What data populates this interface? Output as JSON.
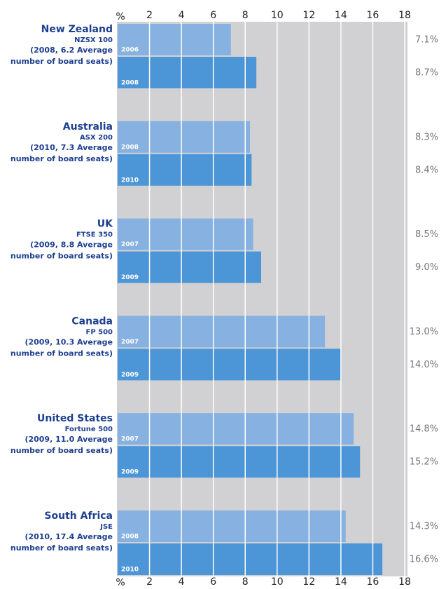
{
  "chart_data": {
    "type": "bar",
    "orientation": "horizontal",
    "x_unit": "%",
    "xlim": [
      0,
      18
    ],
    "xticks": [
      2,
      4,
      6,
      8,
      10,
      12,
      14,
      16,
      18
    ],
    "grid": true,
    "colors": [
      "#86b1e1",
      "#4c96d7"
    ],
    "groups": [
      {
        "name": "New Zealand",
        "index": "NZSX 100",
        "note": [
          "(2008, 6.2 Average",
          "number of board seats)"
        ],
        "years": [
          "2006",
          "2008"
        ],
        "values": [
          7.1,
          8.7
        ],
        "value_labels": [
          "7.1%",
          "8.7%"
        ]
      },
      {
        "name": "Australia",
        "index": "ASX 200",
        "note": [
          "(2010, 7.3 Average",
          "number of board seats)"
        ],
        "years": [
          "2008",
          "2010"
        ],
        "values": [
          8.3,
          8.4
        ],
        "value_labels": [
          "8.3%",
          "8.4%"
        ]
      },
      {
        "name": "UK",
        "index": "FTSE 350",
        "note": [
          "(2009, 8.8 Average",
          "number of board seats)"
        ],
        "years": [
          "2007",
          "2009"
        ],
        "values": [
          8.5,
          9.0
        ],
        "value_labels": [
          "8.5%",
          "9.0%"
        ]
      },
      {
        "name": "Canada",
        "index": "FP 500",
        "note": [
          "(2009, 10.3 Average",
          "number of board seats)"
        ],
        "years": [
          "2007",
          "2009"
        ],
        "values": [
          13.0,
          14.0
        ],
        "value_labels": [
          "13.0%",
          "14.0%"
        ]
      },
      {
        "name": "United States",
        "index": "Fortune 500",
        "note": [
          "(2009, 11.0 Average",
          "number of board seats)"
        ],
        "years": [
          "2007",
          "2009"
        ],
        "values": [
          14.8,
          15.2
        ],
        "value_labels": [
          "14.8%",
          "15.2%"
        ]
      },
      {
        "name": "South Africa",
        "index": "JSE",
        "note": [
          "(2010, 17.4 Average",
          "number of board seats)"
        ],
        "years": [
          "2008",
          "2010"
        ],
        "values": [
          14.3,
          16.6
        ],
        "value_labels": [
          "14.3%",
          "16.6%"
        ]
      }
    ]
  }
}
